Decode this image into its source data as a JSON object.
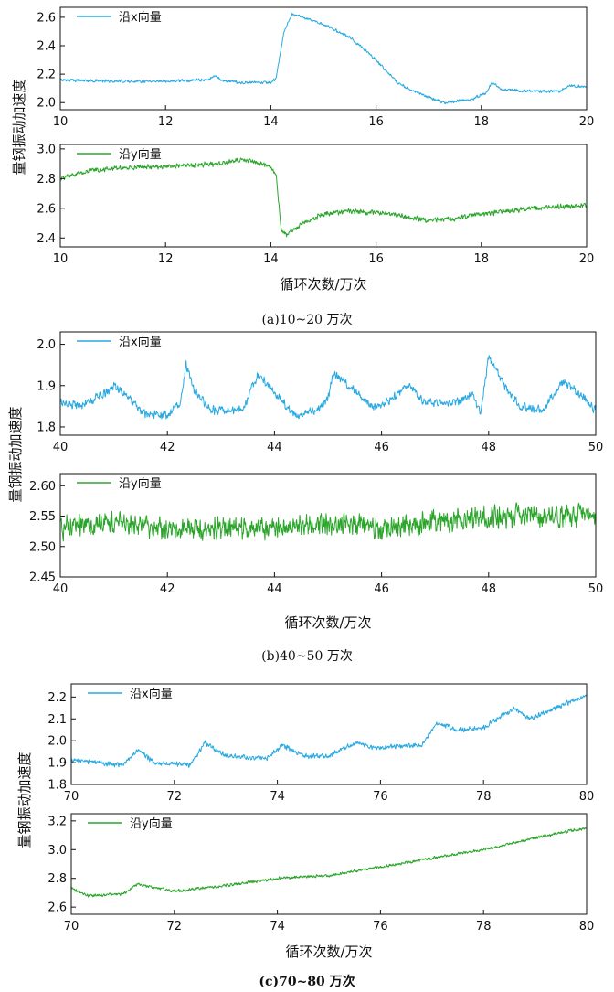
{
  "colors": {
    "series_x": "#29a9e1",
    "series_y": "#2aa52a",
    "axis": "#111111"
  },
  "chart_data": [
    {
      "type": "line",
      "group": "a",
      "caption": "(a)10~20 万次",
      "xlabel": "循环次数/万次",
      "ylabel": "量钢振动加速度",
      "panels": [
        {
          "legend": "沿x向量",
          "color": "#29a9e1",
          "xlim": [
            10,
            20
          ],
          "ylim": [
            1.95,
            2.67
          ],
          "xticks": [
            10,
            12,
            14,
            16,
            18,
            20
          ],
          "yticks": [
            2.0,
            2.2,
            2.4,
            2.6
          ],
          "noise": 0.012,
          "points": [
            [
              10,
              2.16
            ],
            [
              11,
              2.15
            ],
            [
              12,
              2.15
            ],
            [
              12.8,
              2.16
            ],
            [
              12.95,
              2.19
            ],
            [
              13.1,
              2.15
            ],
            [
              13.5,
              2.14
            ],
            [
              14.0,
              2.14
            ],
            [
              14.1,
              2.17
            ],
            [
              14.25,
              2.5
            ],
            [
              14.4,
              2.62
            ],
            [
              14.6,
              2.6
            ],
            [
              15.0,
              2.55
            ],
            [
              15.5,
              2.46
            ],
            [
              16.0,
              2.3
            ],
            [
              16.3,
              2.18
            ],
            [
              16.4,
              2.14
            ],
            [
              16.5,
              2.12
            ],
            [
              16.9,
              2.05
            ],
            [
              17.3,
              2.0
            ],
            [
              17.8,
              2.02
            ],
            [
              18.1,
              2.07
            ],
            [
              18.2,
              2.14
            ],
            [
              18.4,
              2.09
            ],
            [
              19.0,
              2.08
            ],
            [
              19.5,
              2.08
            ],
            [
              19.7,
              2.12
            ],
            [
              20,
              2.11
            ]
          ]
        },
        {
          "legend": "沿y向量",
          "color": "#2aa52a",
          "xlim": [
            10,
            20
          ],
          "ylim": [
            2.34,
            3.03
          ],
          "xticks": [
            10,
            12,
            14,
            16,
            18,
            20
          ],
          "yticks": [
            2.4,
            2.6,
            2.8,
            3.0
          ],
          "noise": 0.02,
          "points": [
            [
              10,
              2.8
            ],
            [
              10.5,
              2.85
            ],
            [
              11,
              2.87
            ],
            [
              12,
              2.88
            ],
            [
              12.5,
              2.89
            ],
            [
              13,
              2.9
            ],
            [
              13.5,
              2.93
            ],
            [
              13.8,
              2.9
            ],
            [
              14.0,
              2.88
            ],
            [
              14.1,
              2.82
            ],
            [
              14.2,
              2.45
            ],
            [
              14.3,
              2.42
            ],
            [
              14.6,
              2.5
            ],
            [
              15.0,
              2.56
            ],
            [
              15.5,
              2.58
            ],
            [
              16.0,
              2.57
            ],
            [
              16.5,
              2.55
            ],
            [
              17.0,
              2.52
            ],
            [
              17.5,
              2.53
            ],
            [
              18.0,
              2.56
            ],
            [
              18.5,
              2.58
            ],
            [
              19.0,
              2.6
            ],
            [
              19.5,
              2.61
            ],
            [
              20,
              2.62
            ]
          ]
        }
      ]
    },
    {
      "type": "line",
      "group": "b",
      "caption": "(b)40~50 万次",
      "xlabel": "循环次数/万次",
      "ylabel": "量钢振动加速度",
      "panels": [
        {
          "legend": "沿x向量",
          "color": "#29a9e1",
          "xlim": [
            40,
            50
          ],
          "ylim": [
            1.78,
            2.03
          ],
          "xticks": [
            40,
            42,
            44,
            46,
            48,
            50
          ],
          "yticks": [
            1.8,
            1.9,
            2.0
          ],
          "noise": 0.012,
          "points": [
            [
              40,
              1.86
            ],
            [
              40.4,
              1.85
            ],
            [
              40.8,
              1.88
            ],
            [
              41.0,
              1.9
            ],
            [
              41.3,
              1.87
            ],
            [
              41.6,
              1.83
            ],
            [
              42.0,
              1.83
            ],
            [
              42.25,
              1.86
            ],
            [
              42.35,
              1.95
            ],
            [
              42.5,
              1.89
            ],
            [
              42.8,
              1.84
            ],
            [
              43.4,
              1.84
            ],
            [
              43.7,
              1.93
            ],
            [
              44.0,
              1.88
            ],
            [
              44.4,
              1.83
            ],
            [
              44.8,
              1.84
            ],
            [
              45.0,
              1.87
            ],
            [
              45.1,
              1.93
            ],
            [
              45.4,
              1.9
            ],
            [
              45.8,
              1.85
            ],
            [
              46.0,
              1.85
            ],
            [
              46.5,
              1.9
            ],
            [
              46.8,
              1.86
            ],
            [
              47.4,
              1.86
            ],
            [
              47.7,
              1.88
            ],
            [
              47.85,
              1.83
            ],
            [
              48.0,
              1.97
            ],
            [
              48.3,
              1.9
            ],
            [
              48.6,
              1.85
            ],
            [
              49.0,
              1.84
            ],
            [
              49.4,
              1.91
            ],
            [
              49.7,
              1.88
            ],
            [
              50,
              1.84
            ]
          ]
        },
        {
          "legend": "沿y向量",
          "color": "#2aa52a",
          "xlim": [
            40,
            50
          ],
          "ylim": [
            2.45,
            2.62
          ],
          "xticks": [
            40,
            42,
            44,
            46,
            48,
            50
          ],
          "yticks": [
            2.45,
            2.5,
            2.55,
            2.6
          ],
          "noise": 0.022,
          "points": [
            [
              40,
              2.53
            ],
            [
              41,
              2.54
            ],
            [
              42,
              2.53
            ],
            [
              43,
              2.53
            ],
            [
              44,
              2.53
            ],
            [
              45,
              2.54
            ],
            [
              46,
              2.53
            ],
            [
              47,
              2.54
            ],
            [
              48,
              2.55
            ],
            [
              49,
              2.55
            ],
            [
              50,
              2.55
            ]
          ]
        }
      ]
    },
    {
      "type": "line",
      "group": "c",
      "caption": "(c)70~80 万次",
      "xlabel": "循环次数/万次",
      "ylabel": "量钢振动加速度",
      "panels": [
        {
          "legend": "沿x向量",
          "color": "#29a9e1",
          "xlim": [
            70,
            80
          ],
          "ylim": [
            1.8,
            2.26
          ],
          "xticks": [
            70,
            72,
            74,
            76,
            78,
            80
          ],
          "yticks": [
            1.8,
            1.9,
            2.0,
            2.1,
            2.2
          ],
          "noise": 0.013,
          "points": [
            [
              70,
              1.91
            ],
            [
              71,
              1.89
            ],
            [
              71.3,
              1.96
            ],
            [
              71.6,
              1.9
            ],
            [
              72.3,
              1.89
            ],
            [
              72.6,
              1.99
            ],
            [
              73,
              1.93
            ],
            [
              73.8,
              1.92
            ],
            [
              74.1,
              1.98
            ],
            [
              74.5,
              1.93
            ],
            [
              75.0,
              1.93
            ],
            [
              75.5,
              1.99
            ],
            [
              75.9,
              1.97
            ],
            [
              76.8,
              1.98
            ],
            [
              77.1,
              2.08
            ],
            [
              77.5,
              2.05
            ],
            [
              78.0,
              2.06
            ],
            [
              78.6,
              2.15
            ],
            [
              78.9,
              2.1
            ],
            [
              79.3,
              2.14
            ],
            [
              80,
              2.21
            ]
          ]
        },
        {
          "legend": "沿y向量",
          "color": "#2aa52a",
          "xlim": [
            70,
            80
          ],
          "ylim": [
            2.55,
            3.25
          ],
          "xticks": [
            70,
            72,
            74,
            76,
            78,
            80
          ],
          "yticks": [
            2.6,
            2.8,
            3.0,
            3.2
          ],
          "noise": 0.012,
          "points": [
            [
              70,
              2.73
            ],
            [
              70.3,
              2.68
            ],
            [
              71,
              2.69
            ],
            [
              71.3,
              2.76
            ],
            [
              72,
              2.71
            ],
            [
              73,
              2.75
            ],
            [
              74,
              2.8
            ],
            [
              75,
              2.82
            ],
            [
              76,
              2.88
            ],
            [
              77,
              2.94
            ],
            [
              78,
              3.0
            ],
            [
              79,
              3.08
            ],
            [
              79.5,
              3.12
            ],
            [
              80,
              3.15
            ]
          ]
        }
      ]
    }
  ]
}
